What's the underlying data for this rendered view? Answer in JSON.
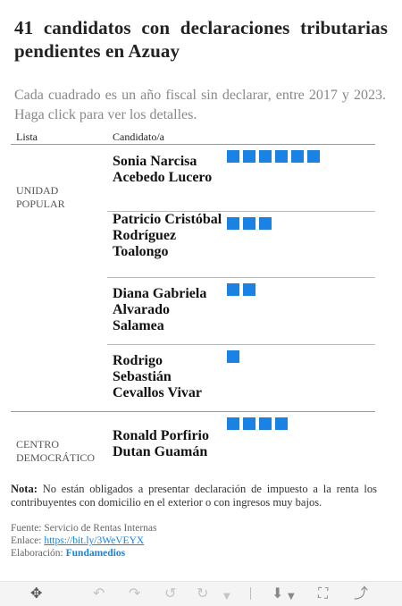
{
  "title": "41 candidatos con declaraciones tributarias pendientes en Azuay",
  "subtitle": "Cada cuadrado es un año fiscal sin declarar, entre 2017 y 2023. Haga click para ver los detalles.",
  "table": {
    "col_party": "Lista",
    "col_candidate": "Candidato/a"
  },
  "parties": [
    {
      "label_line1": "UNIDAD",
      "label_line2": "POPULAR",
      "candidates": [
        {
          "name": "Sonia Narcisa Acebedo Lucero",
          "years_undeclared": 6
        },
        {
          "name": "Patricio Cristóbal Rodríguez Toalongo",
          "years_undeclared": 3
        },
        {
          "name": "Diana Gabriela Alvarado Salamea",
          "years_undeclared": 2
        },
        {
          "name": "Rodrigo Sebastián Cevallos Vivar",
          "years_undeclared": 1
        }
      ]
    },
    {
      "label_line1": "CENTRO",
      "label_line2": "DEMOCRÁTICO",
      "candidates": [
        {
          "name": "Ronald Porfirio Dutan Guamán",
          "years_undeclared": 4
        }
      ]
    }
  ],
  "note": {
    "label": "Nota:",
    "text": "No están obligados a presentar declaración de impuesto a la renta los contribuyentes con domicilio en el exterior o con ingresos muy bajos."
  },
  "footer": {
    "source": "Fuente: Servicio de Rentas Internas",
    "link_label": "Enlace:",
    "link_text": "https://bit.ly/3WeVEYX",
    "credit_label": "Elaboración:",
    "credit_org": "Fundamedios"
  },
  "colors": {
    "square": "#1a82e2",
    "accent": "#1a82e2"
  },
  "toolbar": {
    "icons": [
      "move-icon",
      "undo-icon",
      "redo-icon",
      "undo-all-icon",
      "redo-all-icon",
      "dropdown-icon",
      "download-icon",
      "fullscreen-icon",
      "share-icon"
    ]
  }
}
